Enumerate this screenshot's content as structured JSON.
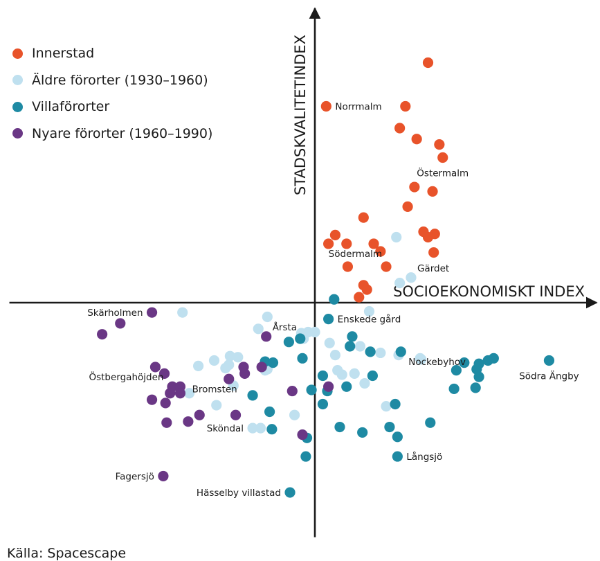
{
  "colors": {
    "Innerstad": "#e8532a",
    "Äldre förorter (1930–1960)": "#bfe0ef",
    "Villaförorter": "#1e8aa3",
    "Nyare förorter (1960–1990)": "#6a3785",
    "axis": "#1a1a1a"
  },
  "source": "Källa: Spacescape",
  "chart_data": {
    "type": "scatter",
    "xlabel": "SOCIOEKONOMISKT INDEX",
    "ylabel": "STADSKVALITETINDEX",
    "xlim": [
      -27,
      25
    ],
    "ylim": [
      -21.5,
      25.5
    ],
    "grid": false,
    "axes_cross_at_origin": true,
    "axis_ticks": false,
    "legend_position": "top-left",
    "series": [
      {
        "name": "Innerstad",
        "points": [
          [
            10,
            22
          ],
          [
            1,
            18
          ],
          [
            8,
            18
          ],
          [
            7.5,
            16
          ],
          [
            9,
            15
          ],
          [
            11,
            14.5
          ],
          [
            11.3,
            13.3
          ],
          [
            8.8,
            10.6
          ],
          [
            10.4,
            10.2
          ],
          [
            8.2,
            8.8
          ],
          [
            4.3,
            7.8
          ],
          [
            1.8,
            6.2
          ],
          [
            1.2,
            5.4
          ],
          [
            2.8,
            5.4
          ],
          [
            5.2,
            5.4
          ],
          [
            9.6,
            6.5
          ],
          [
            10.6,
            6.3
          ],
          [
            10,
            6
          ],
          [
            5.8,
            4.7
          ],
          [
            10.5,
            4.6
          ],
          [
            2.9,
            3.3
          ],
          [
            6.3,
            3.3
          ],
          [
            4.3,
            1.6
          ],
          [
            4.6,
            1.2
          ],
          [
            3.9,
            0.5
          ]
        ]
      },
      {
        "name": "Äldre förorter (1930–1960)",
        "points": [
          [
            7.2,
            6
          ],
          [
            8.5,
            2.3
          ],
          [
            7.5,
            1.8
          ],
          [
            4.8,
            -0.8
          ],
          [
            -11.7,
            -0.9
          ],
          [
            -4.2,
            -1.3
          ],
          [
            -5,
            -2.4
          ],
          [
            -1.2,
            -2.8
          ],
          [
            -0.6,
            -2.7
          ],
          [
            0,
            -2.7
          ],
          [
            -1,
            -3.3
          ],
          [
            1.3,
            -3.7
          ],
          [
            4,
            -4
          ],
          [
            5.8,
            -4.6
          ],
          [
            1.8,
            -4.8
          ],
          [
            7.4,
            -4.8
          ],
          [
            9.4,
            -5.2
          ],
          [
            9.3,
            -5.1
          ],
          [
            -7.5,
            -4.9
          ],
          [
            -6.8,
            -5
          ],
          [
            -8.9,
            -5.3
          ],
          [
            -10.3,
            -5.8
          ],
          [
            -7.6,
            -5.7
          ],
          [
            -7.9,
            -6
          ],
          [
            -4.2,
            -6.1
          ],
          [
            -4.4,
            -6.2
          ],
          [
            2,
            -6.2
          ],
          [
            2.4,
            -6.6
          ],
          [
            3.5,
            -6.5
          ],
          [
            4.4,
            -7.4
          ],
          [
            -7.2,
            -7.6
          ],
          [
            -11.1,
            -8.3
          ],
          [
            -8.7,
            -9.4
          ],
          [
            -1.8,
            -10.3
          ],
          [
            -5.5,
            -11.5
          ],
          [
            -4.8,
            -11.5
          ],
          [
            6.3,
            -9.5
          ]
        ]
      },
      {
        "name": "Villaförorter",
        "points": [
          [
            1.7,
            0.3
          ],
          [
            1.2,
            -1.5
          ],
          [
            3.3,
            -3.1
          ],
          [
            -2.3,
            -3.6
          ],
          [
            -1.3,
            -3.3
          ],
          [
            -4.4,
            -5.4
          ],
          [
            -3.7,
            -5.5
          ],
          [
            -1.1,
            -5.1
          ],
          [
            3.1,
            -4
          ],
          [
            4.9,
            -4.5
          ],
          [
            7.6,
            -4.5
          ],
          [
            13.2,
            -5.5
          ],
          [
            15.3,
            -5.3
          ],
          [
            15.8,
            -5.1
          ],
          [
            14.5,
            -5.6
          ],
          [
            20.7,
            -5.3
          ],
          [
            12.5,
            -6.2
          ],
          [
            14.3,
            -6.1
          ],
          [
            14.5,
            -6.8
          ],
          [
            0.7,
            -6.7
          ],
          [
            5.1,
            -6.7
          ],
          [
            -0.3,
            -8
          ],
          [
            1.1,
            -8.1
          ],
          [
            2.8,
            -7.7
          ],
          [
            12.3,
            -7.9
          ],
          [
            14.2,
            -7.8
          ],
          [
            7.1,
            -9.3
          ],
          [
            -5.5,
            -8.5
          ],
          [
            -4,
            -10
          ],
          [
            0.7,
            -9.3
          ],
          [
            -3.8,
            -11.6
          ],
          [
            2.2,
            -11.4
          ],
          [
            4.2,
            -11.9
          ],
          [
            6.6,
            -11.4
          ],
          [
            10.2,
            -11
          ],
          [
            7.3,
            -12.3
          ],
          [
            -0.7,
            -12.4
          ],
          [
            -0.8,
            -14.1
          ],
          [
            7.3,
            -14.1
          ],
          [
            -2.2,
            -17.4
          ]
        ]
      },
      {
        "name": "Nyare förorter (1960–1990)",
        "points": [
          [
            -14.4,
            -0.9
          ],
          [
            -17.2,
            -1.9
          ],
          [
            -18.8,
            -2.9
          ],
          [
            -4.3,
            -3.1
          ],
          [
            -14.1,
            -5.9
          ],
          [
            -6.3,
            -5.9
          ],
          [
            -4.7,
            -5.9
          ],
          [
            -13.3,
            -6.5
          ],
          [
            -6.2,
            -6.5
          ],
          [
            -7.6,
            -7
          ],
          [
            -12.6,
            -7.7
          ],
          [
            -11.9,
            -7.7
          ],
          [
            -12.8,
            -8.3
          ],
          [
            -11.9,
            -8.3
          ],
          [
            -14.4,
            -8.9
          ],
          [
            -13.2,
            -9.2
          ],
          [
            -2,
            -8.1
          ],
          [
            1.2,
            -7.7
          ],
          [
            -10.2,
            -10.3
          ],
          [
            -7,
            -10.3
          ],
          [
            -11.2,
            -10.9
          ],
          [
            -13.1,
            -11
          ],
          [
            -1.1,
            -12.1
          ],
          [
            -13.4,
            -15.9
          ]
        ]
      }
    ],
    "annotations": [
      {
        "text": "Norrmalm",
        "point": [
          1,
          18
        ],
        "side": "right"
      },
      {
        "text": "Östermalm",
        "point": [
          11.3,
          13.3
        ],
        "side": "below"
      },
      {
        "text": "Södermalm",
        "point": [
          5.2,
          5.4
        ],
        "side": "below-left"
      },
      {
        "text": "Gärdet",
        "point": [
          8.5,
          2.3
        ],
        "side": "above-right"
      },
      {
        "text": "Skärholmen",
        "point": [
          -14.4,
          -0.9
        ],
        "side": "left"
      },
      {
        "text": "Årsta",
        "point": [
          -4.3,
          -3.1
        ],
        "side": "above-right"
      },
      {
        "text": "Enskede gård",
        "point": [
          1.2,
          -1.5
        ],
        "side": "right"
      },
      {
        "text": "Östbergahöjden",
        "point": [
          -14.1,
          -5.9
        ],
        "side": "below-left"
      },
      {
        "text": "Nockebyhov",
        "point": [
          7.6,
          -4.5
        ],
        "side": "below-right"
      },
      {
        "text": "Södra Ängby",
        "point": [
          20.7,
          -5.3
        ],
        "side": "below"
      },
      {
        "text": "Bromsten",
        "point": [
          -7.6,
          -7
        ],
        "side": "below-left"
      },
      {
        "text": "Sköndal",
        "point": [
          -5.5,
          -11.5
        ],
        "side": "left"
      },
      {
        "text": "Långsjö",
        "point": [
          7.3,
          -14.1
        ],
        "side": "right"
      },
      {
        "text": "Fagersjö",
        "point": [
          -13.4,
          -15.9
        ],
        "side": "left"
      },
      {
        "text": "Hässelby villastad",
        "point": [
          -2.2,
          -17.4
        ],
        "side": "left"
      }
    ]
  }
}
